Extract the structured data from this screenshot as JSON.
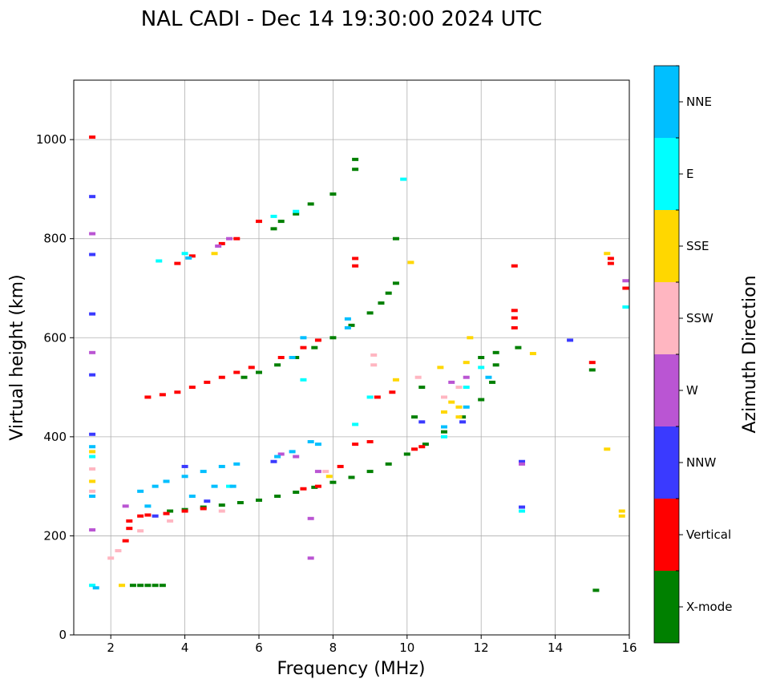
{
  "chart_data": {
    "type": "scatter",
    "title": "NAL CADI - Dec 14 19:30:00 2024 UTC",
    "xlabel": "Frequency (MHz)",
    "ylabel": "Virtual height (km)",
    "xlim": [
      1,
      16
    ],
    "ylim": [
      0,
      1120
    ],
    "xticks": [
      2,
      4,
      6,
      8,
      10,
      12,
      14,
      16
    ],
    "yticks": [
      0,
      200,
      400,
      600,
      800,
      1000
    ],
    "grid": true,
    "colorbar": {
      "label": "Azimuth Direction",
      "categories": [
        {
          "name": "NNE",
          "color": "#00bfff"
        },
        {
          "name": "E",
          "color": "#00ffff"
        },
        {
          "name": "SSE",
          "color": "#ffd700"
        },
        {
          "name": "SSW",
          "color": "#ffb6c1"
        },
        {
          "name": "W",
          "color": "#ba55d3"
        },
        {
          "name": "NNW",
          "color": "#3a3aff"
        },
        {
          "name": "Vertical",
          "color": "#ff0000"
        },
        {
          "name": "X-mode",
          "color": "#008000"
        }
      ]
    },
    "series": [
      {
        "name": "X-mode",
        "color": "#008000",
        "points": [
          [
            2.6,
            100
          ],
          [
            2.8,
            100
          ],
          [
            3.0,
            100
          ],
          [
            3.2,
            100
          ],
          [
            3.4,
            100
          ],
          [
            3.6,
            250
          ],
          [
            4.0,
            253
          ],
          [
            4.5,
            258
          ],
          [
            5.0,
            262
          ],
          [
            5.5,
            267
          ],
          [
            6.0,
            272
          ],
          [
            6.5,
            280
          ],
          [
            7.0,
            288
          ],
          [
            7.5,
            298
          ],
          [
            8.0,
            308
          ],
          [
            8.5,
            318
          ],
          [
            9.0,
            330
          ],
          [
            9.5,
            345
          ],
          [
            10.0,
            365
          ],
          [
            10.5,
            385
          ],
          [
            11.0,
            410
          ],
          [
            11.5,
            440
          ],
          [
            12.0,
            475
          ],
          [
            12.3,
            510
          ],
          [
            12.4,
            545
          ],
          [
            12.4,
            570
          ],
          [
            5.6,
            520
          ],
          [
            6.0,
            530
          ],
          [
            6.5,
            545
          ],
          [
            7.0,
            560
          ],
          [
            7.5,
            580
          ],
          [
            8.0,
            600
          ],
          [
            8.5,
            625
          ],
          [
            9.0,
            650
          ],
          [
            9.3,
            670
          ],
          [
            9.5,
            690
          ],
          [
            9.7,
            710
          ],
          [
            6.4,
            820
          ],
          [
            6.6,
            835
          ],
          [
            7.0,
            850
          ],
          [
            7.4,
            870
          ],
          [
            8.0,
            890
          ],
          [
            8.6,
            940
          ],
          [
            8.6,
            960
          ],
          [
            9.7,
            800
          ],
          [
            10.2,
            440
          ],
          [
            10.4,
            500
          ],
          [
            12.0,
            560
          ],
          [
            13.0,
            580
          ],
          [
            15.0,
            535
          ],
          [
            15.1,
            90
          ]
        ]
      },
      {
        "name": "Vertical",
        "color": "#ff0000",
        "points": [
          [
            1.5,
            1005
          ],
          [
            2.5,
            230
          ],
          [
            2.8,
            240
          ],
          [
            3.0,
            242
          ],
          [
            3.5,
            245
          ],
          [
            4.0,
            250
          ],
          [
            4.5,
            255
          ],
          [
            3.0,
            480
          ],
          [
            3.4,
            485
          ],
          [
            3.8,
            490
          ],
          [
            4.2,
            500
          ],
          [
            4.6,
            510
          ],
          [
            5.0,
            520
          ],
          [
            5.4,
            530
          ],
          [
            5.8,
            540
          ],
          [
            6.6,
            560
          ],
          [
            7.2,
            580
          ],
          [
            7.6,
            595
          ],
          [
            3.8,
            750
          ],
          [
            4.2,
            765
          ],
          [
            5.0,
            790
          ],
          [
            5.4,
            800
          ],
          [
            6.0,
            835
          ],
          [
            7.2,
            295
          ],
          [
            7.6,
            300
          ],
          [
            8.2,
            340
          ],
          [
            8.6,
            385
          ],
          [
            9.0,
            390
          ],
          [
            8.6,
            760
          ],
          [
            8.6,
            745
          ],
          [
            10.2,
            375
          ],
          [
            10.4,
            380
          ],
          [
            9.2,
            480
          ],
          [
            9.6,
            490
          ],
          [
            12.9,
            745
          ],
          [
            12.9,
            640
          ],
          [
            12.9,
            620
          ],
          [
            12.9,
            655
          ],
          [
            15.0,
            550
          ],
          [
            15.5,
            760
          ],
          [
            15.5,
            750
          ],
          [
            15.9,
            700
          ],
          [
            2.5,
            215
          ],
          [
            2.4,
            190
          ]
        ]
      },
      {
        "name": "NNW",
        "color": "#3a3aff",
        "points": [
          [
            1.5,
            885
          ],
          [
            1.5,
            768
          ],
          [
            1.5,
            648
          ],
          [
            1.5,
            525
          ],
          [
            1.5,
            405
          ],
          [
            3.2,
            240
          ],
          [
            4.0,
            340
          ],
          [
            4.6,
            270
          ],
          [
            6.4,
            350
          ],
          [
            10.4,
            430
          ],
          [
            11.0,
            420
          ],
          [
            11.5,
            430
          ],
          [
            13.1,
            350
          ],
          [
            13.1,
            258
          ],
          [
            14.4,
            595
          ]
        ]
      },
      {
        "name": "W",
        "color": "#ba55d3",
        "points": [
          [
            1.5,
            810
          ],
          [
            1.5,
            570
          ],
          [
            1.5,
            212
          ],
          [
            4.9,
            785
          ],
          [
            5.2,
            800
          ],
          [
            6.6,
            365
          ],
          [
            7.0,
            360
          ],
          [
            7.6,
            330
          ],
          [
            7.4,
            235
          ],
          [
            7.4,
            155
          ],
          [
            11.2,
            510
          ],
          [
            11.6,
            520
          ],
          [
            13.1,
            345
          ],
          [
            15.9,
            715
          ],
          [
            2.4,
            260
          ]
        ]
      },
      {
        "name": "SSW",
        "color": "#ffb6c1",
        "points": [
          [
            1.5,
            335
          ],
          [
            1.5,
            290
          ],
          [
            2.2,
            170
          ],
          [
            2.0,
            155
          ],
          [
            2.8,
            210
          ],
          [
            3.6,
            230
          ],
          [
            5.0,
            250
          ],
          [
            7.8,
            330
          ],
          [
            9.1,
            565
          ],
          [
            9.1,
            545
          ],
          [
            10.3,
            520
          ],
          [
            11.0,
            480
          ],
          [
            11.4,
            500
          ]
        ]
      },
      {
        "name": "SSE",
        "color": "#ffd700",
        "points": [
          [
            1.5,
            370
          ],
          [
            1.5,
            310
          ],
          [
            2.3,
            100
          ],
          [
            4.8,
            770
          ],
          [
            7.9,
            320
          ],
          [
            9.7,
            515
          ],
          [
            10.1,
            752
          ],
          [
            10.9,
            540
          ],
          [
            11.2,
            470
          ],
          [
            11.4,
            460
          ],
          [
            11.6,
            550
          ],
          [
            11.7,
            600
          ],
          [
            11.4,
            440
          ],
          [
            11.0,
            450
          ],
          [
            13.4,
            568
          ],
          [
            15.4,
            770
          ],
          [
            15.4,
            375
          ],
          [
            15.8,
            250
          ],
          [
            15.8,
            240
          ]
        ]
      },
      {
        "name": "E",
        "color": "#00ffff",
        "points": [
          [
            1.5,
            360
          ],
          [
            1.5,
            100
          ],
          [
            3.3,
            755
          ],
          [
            4.0,
            770
          ],
          [
            6.4,
            845
          ],
          [
            7.0,
            855
          ],
          [
            9.0,
            480
          ],
          [
            9.9,
            920
          ],
          [
            7.2,
            515
          ],
          [
            8.6,
            425
          ],
          [
            11.0,
            400
          ],
          [
            11.6,
            500
          ],
          [
            12.0,
            540
          ],
          [
            13.1,
            250
          ],
          [
            15.9,
            662
          ],
          [
            5.2,
            300
          ]
        ]
      },
      {
        "name": "NNE",
        "color": "#00bfff",
        "points": [
          [
            1.5,
            380
          ],
          [
            1.5,
            280
          ],
          [
            1.6,
            95
          ],
          [
            2.8,
            290
          ],
          [
            3.2,
            300
          ],
          [
            3.5,
            310
          ],
          [
            4.0,
            320
          ],
          [
            4.5,
            330
          ],
          [
            5.0,
            340
          ],
          [
            5.4,
            345
          ],
          [
            6.5,
            360
          ],
          [
            6.9,
            370
          ],
          [
            7.4,
            390
          ],
          [
            7.6,
            385
          ],
          [
            3.0,
            260
          ],
          [
            4.2,
            280
          ],
          [
            4.8,
            300
          ],
          [
            5.3,
            300
          ],
          [
            4.1,
            761
          ],
          [
            6.9,
            560
          ],
          [
            7.2,
            600
          ],
          [
            8.4,
            620
          ],
          [
            8.4,
            638
          ],
          [
            11.0,
            420
          ],
          [
            11.6,
            460
          ],
          [
            12.2,
            520
          ]
        ]
      }
    ]
  }
}
